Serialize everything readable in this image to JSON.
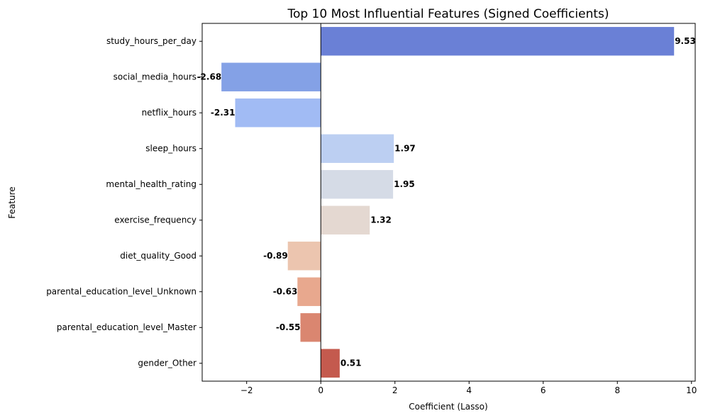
{
  "chart_data": {
    "type": "bar",
    "orientation": "horizontal",
    "title": "Top 10 Most Influential Features (Signed Coefficients)",
    "xlabel": "Coefficient (Lasso)",
    "ylabel": "Feature",
    "xlim": [
      -3.2,
      10.1
    ],
    "xticks": [
      -2,
      0,
      2,
      4,
      6,
      8,
      10
    ],
    "xtick_labels": [
      "−2",
      "0",
      "2",
      "4",
      "6",
      "8",
      "10"
    ],
    "grid": false,
    "legend": "none",
    "categories": [
      "study_hours_per_day",
      "social_media_hours",
      "netflix_hours",
      "sleep_hours",
      "mental_health_rating",
      "exercise_frequency",
      "diet_quality_Good",
      "parental_education_level_Unknown",
      "parental_education_level_Master",
      "gender_Other"
    ],
    "values": [
      9.53,
      -2.68,
      -2.31,
      1.97,
      1.95,
      1.32,
      -0.89,
      -0.63,
      -0.55,
      0.51
    ],
    "value_labels": [
      "9.53",
      "-2.68",
      "-2.31",
      "1.97",
      "1.95",
      "1.32",
      "-0.89",
      "-0.63",
      "-0.55",
      "0.51"
    ],
    "colors": [
      "#6a80d6",
      "#84a1e6",
      "#a1bbf4",
      "#bccff2",
      "#d5dbe6",
      "#e4d8d1",
      "#ecc5af",
      "#e8a88e",
      "#da8670",
      "#c45a4e"
    ]
  }
}
